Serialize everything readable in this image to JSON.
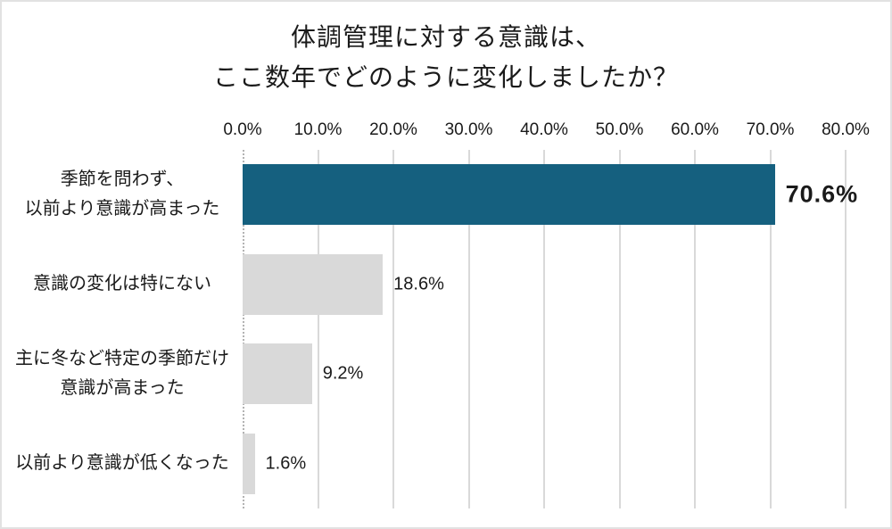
{
  "chart_data": {
    "type": "bar",
    "orientation": "horizontal",
    "title_lines": [
      "体調管理に対する意識は、",
      "ここ数年でどのように変化しましたか？"
    ],
    "x_ticks": [
      "0.0%",
      "10.0%",
      "20.0%",
      "30.0%",
      "40.0%",
      "50.0%",
      "60.0%",
      "70.0%",
      "80.0%"
    ],
    "xlim": [
      0,
      80
    ],
    "grid": true,
    "legend": false,
    "categories": [
      {
        "label_lines": [
          "季節を問わず、",
          "以前より意識が高まった"
        ],
        "value": 70.6,
        "value_label": "70.6%",
        "emphasized": true
      },
      {
        "label_lines": [
          "意識の変化は特にない"
        ],
        "value": 18.6,
        "value_label": "18.6%",
        "emphasized": false
      },
      {
        "label_lines": [
          "主に冬など特定の季節だけ",
          "意識が高まった"
        ],
        "value": 9.2,
        "value_label": "9.2%",
        "emphasized": false
      },
      {
        "label_lines": [
          "以前より意識が低くなった"
        ],
        "value": 1.6,
        "value_label": "1.6%",
        "emphasized": false
      }
    ],
    "colors": {
      "bar_primary": "#15607F",
      "bar_secondary": "#D9D9D9",
      "gridline": "#D9D9D9",
      "zero_axis": "#B3B3B3",
      "text": "#1A1A1A"
    }
  }
}
